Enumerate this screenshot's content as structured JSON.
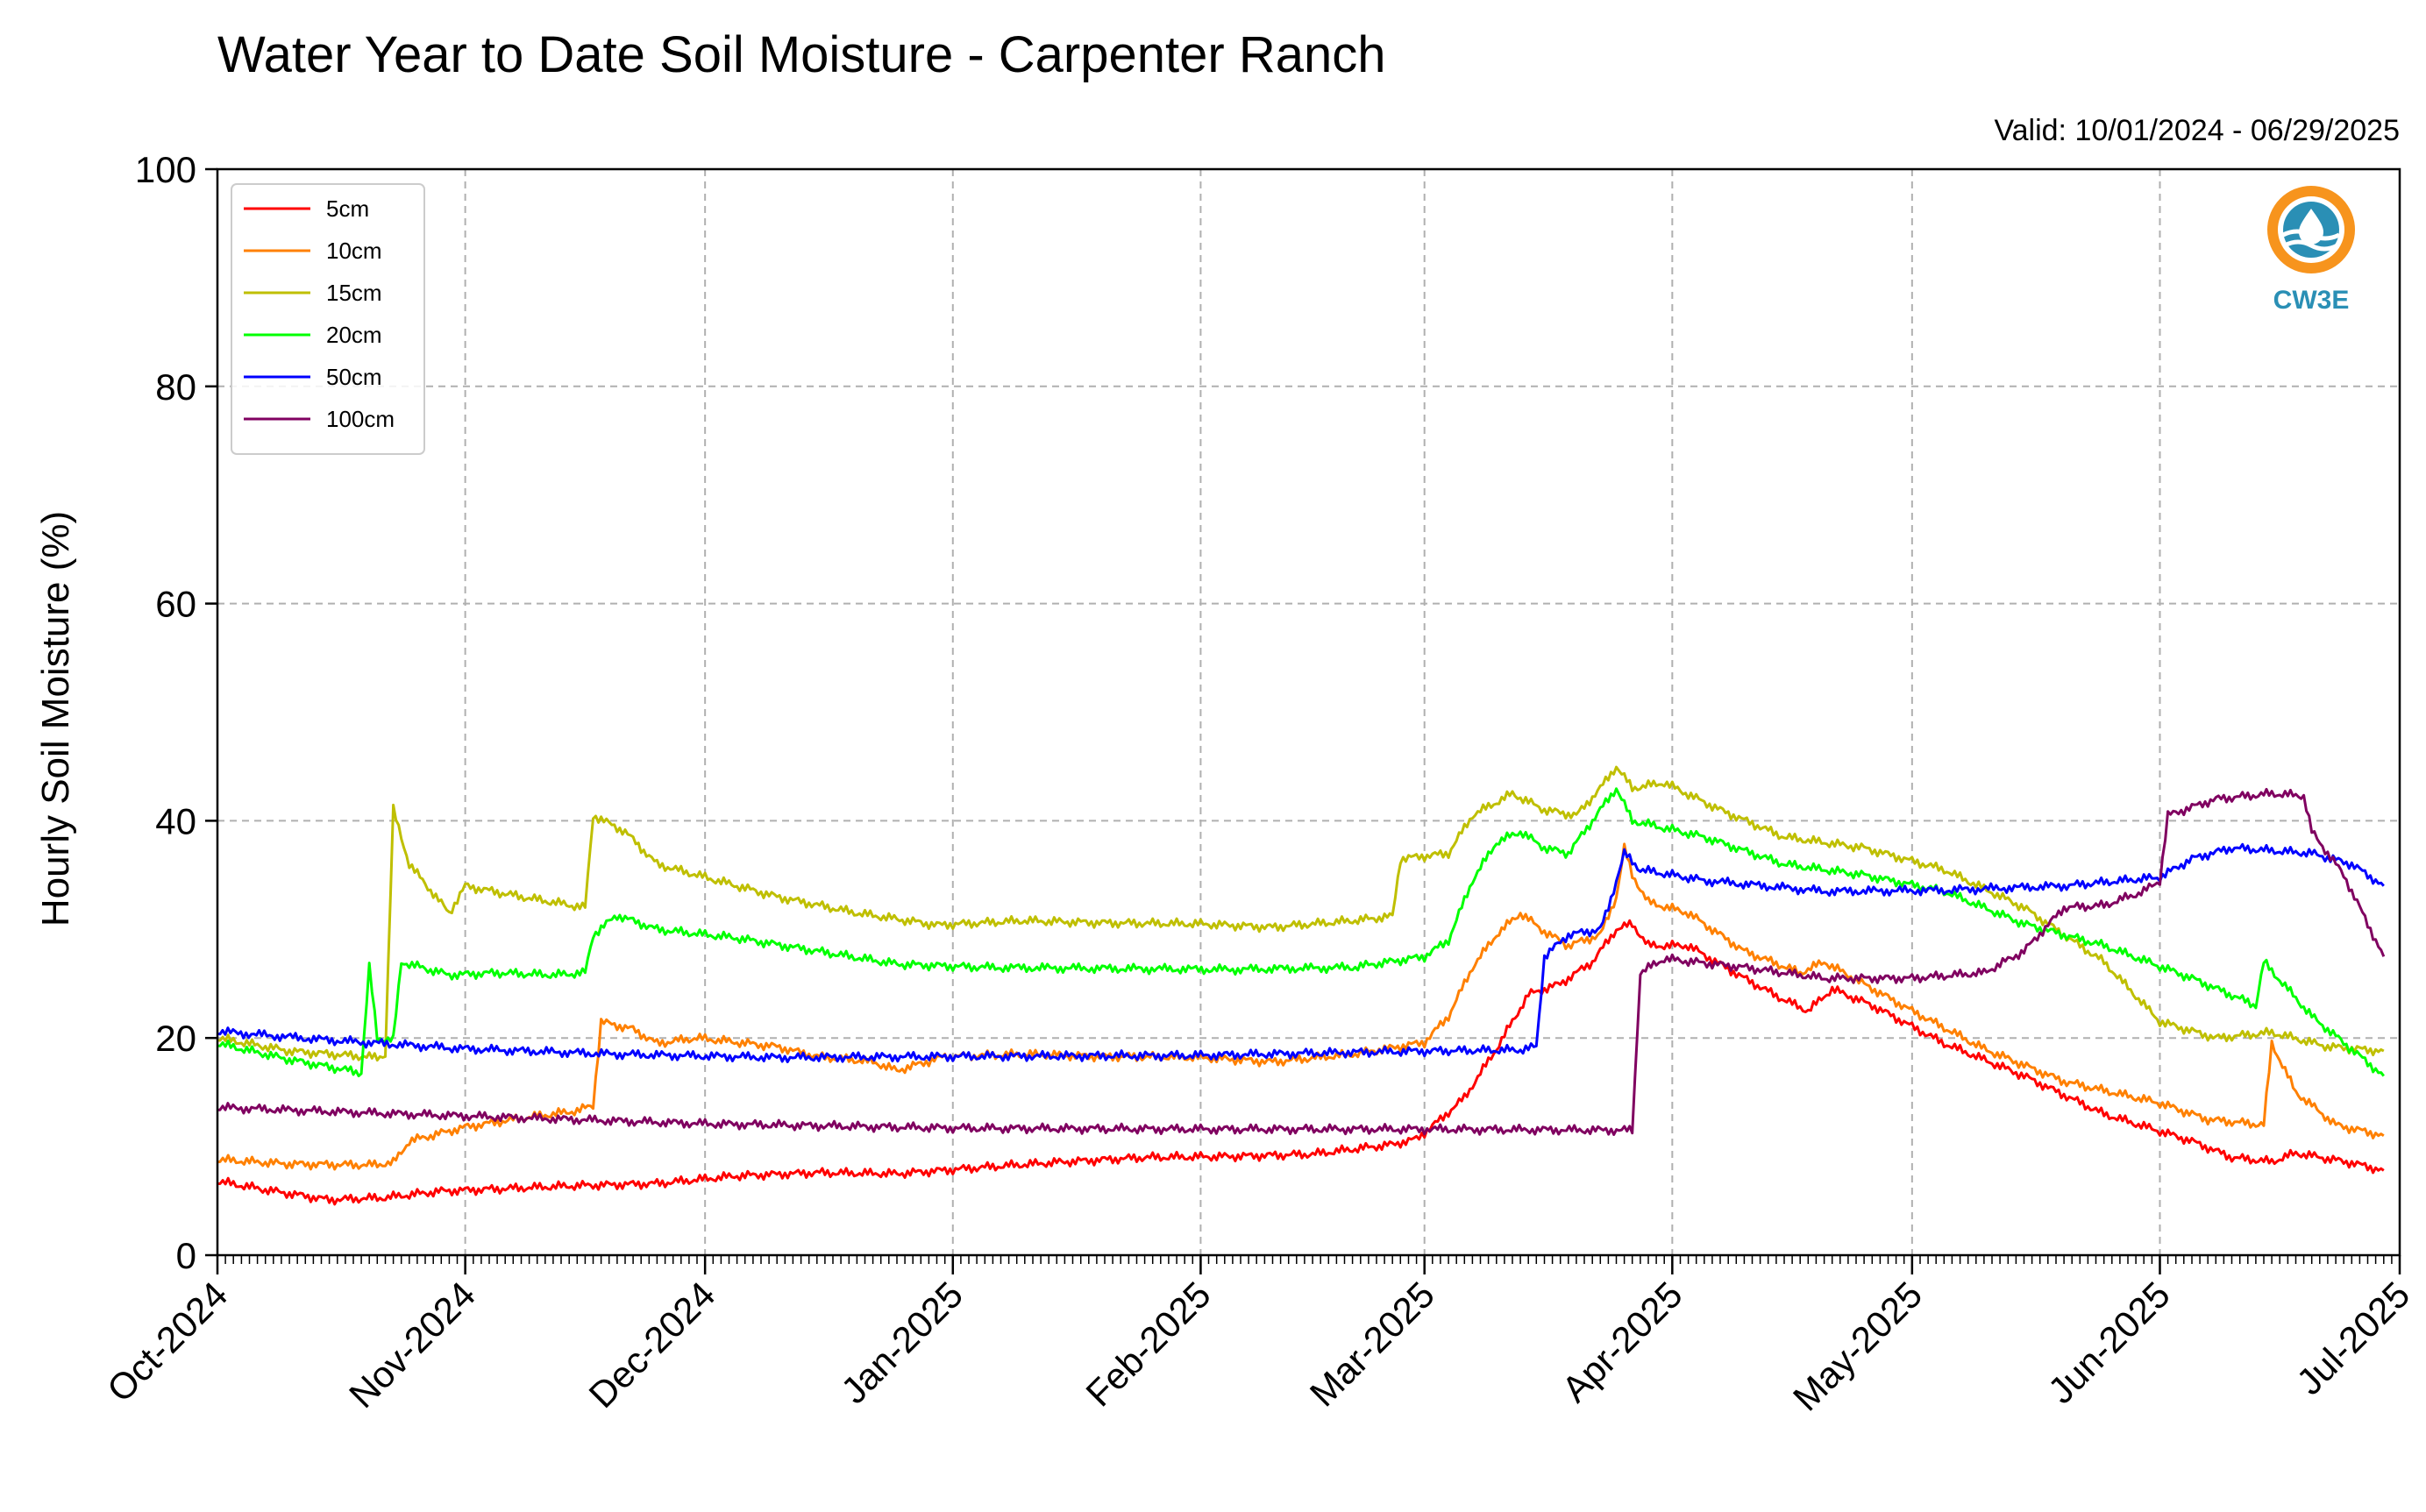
{
  "chart_data": {
    "type": "line",
    "title": "Water Year to Date Soil Moisture - Carpenter Ranch",
    "subtitle": "Valid: 10/01/2024 - 06/29/2025",
    "xlabel": "",
    "ylabel": "Hourly Soil Moisture (%)",
    "ylim": [
      0,
      100
    ],
    "xlim": [
      "2024-10-01",
      "2025-07-01"
    ],
    "y_ticks": [
      "0",
      "20",
      "40",
      "60",
      "80",
      "100"
    ],
    "x_ticks": [
      {
        "date": "2024-10-01",
        "label": "Oct-2024"
      },
      {
        "date": "2024-11-01",
        "label": "Nov-2024"
      },
      {
        "date": "2024-12-01",
        "label": "Dec-2024"
      },
      {
        "date": "2025-01-01",
        "label": "Jan-2025"
      },
      {
        "date": "2025-02-01",
        "label": "Feb-2025"
      },
      {
        "date": "2025-03-01",
        "label": "Mar-2025"
      },
      {
        "date": "2025-04-01",
        "label": "Apr-2025"
      },
      {
        "date": "2025-05-01",
        "label": "May-2025"
      },
      {
        "date": "2025-06-01",
        "label": "Jun-2025"
      },
      {
        "date": "2025-07-01",
        "label": "Jul-2025"
      }
    ],
    "grid": true,
    "legend_position": "top-left",
    "series": [
      {
        "name": "5cm",
        "color": "#ff0000",
        "points": [
          [
            "2024-10-01",
            6.8
          ],
          [
            "2024-10-08",
            5.9
          ],
          [
            "2024-10-15",
            5.1
          ],
          [
            "2024-10-22",
            5.3
          ],
          [
            "2024-10-29",
            5.9
          ],
          [
            "2024-11-05",
            6.1
          ],
          [
            "2024-11-15",
            6.4
          ],
          [
            "2024-11-25",
            6.6
          ],
          [
            "2024-12-05",
            7.3
          ],
          [
            "2024-12-15",
            7.6
          ],
          [
            "2024-12-25",
            7.5
          ],
          [
            "2025-01-05",
            8.1
          ],
          [
            "2025-01-15",
            8.6
          ],
          [
            "2025-01-25",
            9.0
          ],
          [
            "2025-02-05",
            9.1
          ],
          [
            "2025-02-15",
            9.3
          ],
          [
            "2025-02-25",
            10.2
          ],
          [
            "2025-02-28",
            10.7
          ],
          [
            "2025-03-03",
            12.5
          ],
          [
            "2025-03-06",
            14.5
          ],
          [
            "2025-03-10",
            19.0
          ],
          [
            "2025-03-14",
            24.0
          ],
          [
            "2025-03-18",
            25.0
          ],
          [
            "2025-03-22",
            27.0
          ],
          [
            "2025-03-25",
            30.0
          ],
          [
            "2025-03-27",
            30.5
          ],
          [
            "2025-03-29",
            28.5
          ],
          [
            "2025-04-03",
            28.5
          ],
          [
            "2025-04-10",
            25.5
          ],
          [
            "2025-04-15",
            23.5
          ],
          [
            "2025-04-18",
            22.5
          ],
          [
            "2025-04-21",
            24.5
          ],
          [
            "2025-04-26",
            23.0
          ],
          [
            "2025-05-05",
            19.5
          ],
          [
            "2025-05-15",
            16.5
          ],
          [
            "2025-05-25",
            13.0
          ],
          [
            "2025-06-05",
            10.5
          ],
          [
            "2025-06-10",
            9.0
          ],
          [
            "2025-06-15",
            8.6
          ],
          [
            "2025-06-18",
            9.4
          ],
          [
            "2025-06-25",
            8.5
          ],
          [
            "2025-06-29",
            7.8
          ]
        ]
      },
      {
        "name": "10cm",
        "color": "#ff8000",
        "points": [
          [
            "2024-10-01",
            8.8
          ],
          [
            "2024-10-10",
            8.4
          ],
          [
            "2024-10-20",
            8.3
          ],
          [
            "2024-10-23",
            8.5
          ],
          [
            "2024-10-25",
            10.5
          ],
          [
            "2024-11-01",
            11.8
          ],
          [
            "2024-11-08",
            12.6
          ],
          [
            "2024-11-15",
            13.3
          ],
          [
            "2024-11-17",
            13.8
          ],
          [
            "2024-11-18",
            21.5
          ],
          [
            "2024-11-22",
            20.8
          ],
          [
            "2024-11-25",
            19.5
          ],
          [
            "2024-11-30",
            20.0
          ],
          [
            "2024-12-10",
            19.2
          ],
          [
            "2024-12-15",
            18.3
          ],
          [
            "2024-12-22",
            17.8
          ],
          [
            "2024-12-25",
            17.0
          ],
          [
            "2024-12-31",
            18.3
          ],
          [
            "2025-01-10",
            18.5
          ],
          [
            "2025-01-20",
            18.3
          ],
          [
            "2025-02-01",
            18.2
          ],
          [
            "2025-02-10",
            17.8
          ],
          [
            "2025-02-20",
            18.5
          ],
          [
            "2025-02-25",
            19.1
          ],
          [
            "2025-03-01",
            19.6
          ],
          [
            "2025-03-04",
            22.0
          ],
          [
            "2025-03-07",
            26.5
          ],
          [
            "2025-03-10",
            29.5
          ],
          [
            "2025-03-13",
            31.5
          ],
          [
            "2025-03-16",
            29.8
          ],
          [
            "2025-03-19",
            28.5
          ],
          [
            "2025-03-23",
            29.5
          ],
          [
            "2025-03-25",
            33.0
          ],
          [
            "2025-03-26",
            37.5
          ],
          [
            "2025-03-27",
            35.0
          ],
          [
            "2025-03-29",
            32.5
          ],
          [
            "2025-04-03",
            31.5
          ],
          [
            "2025-04-10",
            28.0
          ],
          [
            "2025-04-17",
            26.0
          ],
          [
            "2025-04-20",
            27.0
          ],
          [
            "2025-05-01",
            22.5
          ],
          [
            "2025-05-10",
            19.0
          ],
          [
            "2025-05-20",
            16.0
          ],
          [
            "2025-06-01",
            14.0
          ],
          [
            "2025-06-07",
            12.5
          ],
          [
            "2025-06-14",
            12.0
          ],
          [
            "2025-06-15",
            19.5
          ],
          [
            "2025-06-18",
            15.0
          ],
          [
            "2025-06-23",
            12.0
          ],
          [
            "2025-06-29",
            11.0
          ]
        ]
      },
      {
        "name": "15cm",
        "color": "#bfbf00",
        "points": [
          [
            "2024-10-01",
            20.0
          ],
          [
            "2024-10-10",
            18.8
          ],
          [
            "2024-10-21",
            18.2
          ],
          [
            "2024-10-22",
            18.5
          ],
          [
            "2024-10-23",
            41.0
          ],
          [
            "2024-10-25",
            36.0
          ],
          [
            "2024-10-30",
            31.5
          ],
          [
            "2024-11-01",
            34.0
          ],
          [
            "2024-11-08",
            33.0
          ],
          [
            "2024-11-16",
            32.0
          ],
          [
            "2024-11-17",
            40.5
          ],
          [
            "2024-11-21",
            39.0
          ],
          [
            "2024-11-25",
            36.0
          ],
          [
            "2024-12-01",
            34.8
          ],
          [
            "2024-12-10",
            33.0
          ],
          [
            "2024-12-20",
            31.5
          ],
          [
            "2024-12-30",
            30.4
          ],
          [
            "2025-01-10",
            30.8
          ],
          [
            "2025-01-20",
            30.6
          ],
          [
            "2025-02-01",
            30.5
          ],
          [
            "2025-02-10",
            30.2
          ],
          [
            "2025-02-20",
            30.8
          ],
          [
            "2025-02-25",
            31.2
          ],
          [
            "2025-02-26",
            36.5
          ],
          [
            "2025-03-04",
            37.0
          ],
          [
            "2025-03-07",
            40.5
          ],
          [
            "2025-03-12",
            42.5
          ],
          [
            "2025-03-16",
            41.0
          ],
          [
            "2025-03-20",
            40.5
          ],
          [
            "2025-03-23",
            43.0
          ],
          [
            "2025-03-25",
            45.0
          ],
          [
            "2025-03-27",
            43.0
          ],
          [
            "2025-03-31",
            43.5
          ],
          [
            "2025-04-07",
            41.0
          ],
          [
            "2025-04-15",
            38.5
          ],
          [
            "2025-04-25",
            37.5
          ],
          [
            "2025-05-05",
            35.5
          ],
          [
            "2025-05-15",
            32.0
          ],
          [
            "2025-05-25",
            27.0
          ],
          [
            "2025-06-01",
            21.5
          ],
          [
            "2025-06-08",
            20.0
          ],
          [
            "2025-06-15",
            20.5
          ],
          [
            "2025-06-22",
            19.2
          ],
          [
            "2025-06-29",
            18.8
          ]
        ]
      },
      {
        "name": "20cm",
        "color": "#00ff00",
        "points": [
          [
            "2024-10-01",
            19.5
          ],
          [
            "2024-10-10",
            18.0
          ],
          [
            "2024-10-19",
            16.8
          ],
          [
            "2024-10-20",
            26.5
          ],
          [
            "2024-10-21",
            20.0
          ],
          [
            "2024-10-23",
            19.8
          ],
          [
            "2024-10-24",
            27.0
          ],
          [
            "2024-10-30",
            25.8
          ],
          [
            "2024-11-05",
            26.0
          ],
          [
            "2024-11-12",
            25.8
          ],
          [
            "2024-11-16",
            26.0
          ],
          [
            "2024-11-17",
            29.5
          ],
          [
            "2024-11-20",
            31.3
          ],
          [
            "2024-11-25",
            30.0
          ],
          [
            "2024-12-05",
            29.2
          ],
          [
            "2024-12-15",
            28.0
          ],
          [
            "2024-12-25",
            26.8
          ],
          [
            "2025-01-05",
            26.5
          ],
          [
            "2025-01-20",
            26.4
          ],
          [
            "2025-02-05",
            26.3
          ],
          [
            "2025-02-20",
            26.5
          ],
          [
            "2025-03-01",
            27.5
          ],
          [
            "2025-03-04",
            29.0
          ],
          [
            "2025-03-07",
            34.5
          ],
          [
            "2025-03-10",
            38.0
          ],
          [
            "2025-03-13",
            39.0
          ],
          [
            "2025-03-16",
            37.5
          ],
          [
            "2025-03-19",
            37.0
          ],
          [
            "2025-03-23",
            41.0
          ],
          [
            "2025-03-25",
            43.0
          ],
          [
            "2025-03-27",
            40.0
          ],
          [
            "2025-04-05",
            38.5
          ],
          [
            "2025-04-15",
            36.0
          ],
          [
            "2025-04-25",
            35.0
          ],
          [
            "2025-05-05",
            33.5
          ],
          [
            "2025-05-15",
            30.5
          ],
          [
            "2025-05-25",
            28.5
          ],
          [
            "2025-06-05",
            25.5
          ],
          [
            "2025-06-13",
            23.0
          ],
          [
            "2025-06-14",
            27.0
          ],
          [
            "2025-06-20",
            22.0
          ],
          [
            "2025-06-29",
            16.5
          ]
        ]
      },
      {
        "name": "50cm",
        "color": "#0000ff",
        "points": [
          [
            "2024-10-01",
            20.6
          ],
          [
            "2024-10-15",
            19.8
          ],
          [
            "2024-11-01",
            19.0
          ],
          [
            "2024-11-20",
            18.5
          ],
          [
            "2024-12-10",
            18.2
          ],
          [
            "2025-01-01",
            18.3
          ],
          [
            "2025-02-01",
            18.4
          ],
          [
            "2025-03-01",
            18.8
          ],
          [
            "2025-03-13",
            18.9
          ],
          [
            "2025-03-15",
            19.2
          ],
          [
            "2025-03-16",
            27.5
          ],
          [
            "2025-03-19",
            29.5
          ],
          [
            "2025-03-23",
            30.0
          ],
          [
            "2025-03-24",
            32.0
          ],
          [
            "2025-03-26",
            37.0
          ],
          [
            "2025-03-28",
            35.5
          ],
          [
            "2025-04-05",
            34.5
          ],
          [
            "2025-04-20",
            33.5
          ],
          [
            "2025-05-05",
            33.6
          ],
          [
            "2025-05-20",
            34.0
          ],
          [
            "2025-06-01",
            34.8
          ],
          [
            "2025-06-05",
            36.5
          ],
          [
            "2025-06-10",
            37.5
          ],
          [
            "2025-06-20",
            37.0
          ],
          [
            "2025-06-25",
            36.0
          ],
          [
            "2025-06-29",
            34.0
          ]
        ]
      },
      {
        "name": "100cm",
        "color": "#800060",
        "points": [
          [
            "2024-10-01",
            13.6
          ],
          [
            "2024-10-20",
            13.1
          ],
          [
            "2024-11-10",
            12.6
          ],
          [
            "2024-12-01",
            12.1
          ],
          [
            "2025-01-01",
            11.7
          ],
          [
            "2025-02-01",
            11.6
          ],
          [
            "2025-03-01",
            11.6
          ],
          [
            "2025-03-27",
            11.5
          ],
          [
            "2025-03-28",
            26.0
          ],
          [
            "2025-03-31",
            27.3
          ],
          [
            "2025-04-10",
            26.5
          ],
          [
            "2025-04-20",
            25.5
          ],
          [
            "2025-05-01",
            25.5
          ],
          [
            "2025-05-10",
            26.0
          ],
          [
            "2025-05-15",
            28.0
          ],
          [
            "2025-05-20",
            32.0
          ],
          [
            "2025-05-25",
            32.2
          ],
          [
            "2025-05-30",
            33.5
          ],
          [
            "2025-06-01",
            34.5
          ],
          [
            "2025-06-02",
            40.5
          ],
          [
            "2025-06-08",
            42.0
          ],
          [
            "2025-06-15",
            42.5
          ],
          [
            "2025-06-19",
            42.3
          ],
          [
            "2025-06-20",
            39.0
          ],
          [
            "2025-06-24",
            35.0
          ],
          [
            "2025-06-27",
            30.5
          ],
          [
            "2025-06-29",
            27.5
          ]
        ]
      }
    ]
  },
  "logo": {
    "text": "CW3E",
    "colors": {
      "outer": "#f7941d",
      "inner": "#2a8fb5"
    }
  }
}
